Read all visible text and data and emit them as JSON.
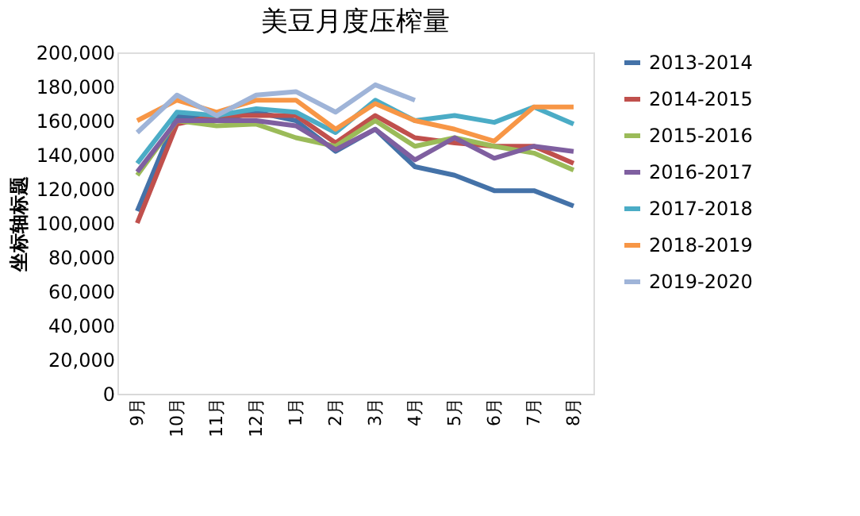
{
  "chart_data": {
    "type": "line",
    "title": "美豆月度压榨量",
    "ylabel": "坐标轴标题",
    "categories": [
      "9月",
      "10月",
      "11月",
      "12月",
      "1月",
      "2月",
      "3月",
      "4月",
      "5月",
      "6月",
      "7月",
      "8月"
    ],
    "series": [
      {
        "name": "2013-2014",
        "color": "#4472a8",
        "values": [
          107000,
          163000,
          160000,
          165000,
          160000,
          142000,
          155000,
          133000,
          128000,
          119000,
          119000,
          110000
        ]
      },
      {
        "name": "2014-2015",
        "color": "#c0504d",
        "values": [
          100000,
          158000,
          163000,
          163000,
          163000,
          147000,
          163000,
          150000,
          147000,
          145000,
          145000,
          135000
        ]
      },
      {
        "name": "2015-2016",
        "color": "#9bbb59",
        "values": [
          128000,
          160000,
          157000,
          158000,
          150000,
          145000,
          160000,
          145000,
          150000,
          145000,
          141000,
          131000
        ]
      },
      {
        "name": "2016-2017",
        "color": "#7f5fa0",
        "values": [
          130000,
          160000,
          160000,
          160000,
          157000,
          143000,
          155000,
          137000,
          150000,
          138000,
          145000,
          142000
        ]
      },
      {
        "name": "2017-2018",
        "color": "#4bacc6",
        "values": [
          135000,
          165000,
          163000,
          167000,
          165000,
          153000,
          172000,
          160000,
          163000,
          159000,
          168000,
          158000
        ]
      },
      {
        "name": "2018-2019",
        "color": "#f79646",
        "values": [
          160000,
          172000,
          165000,
          172000,
          172000,
          155000,
          170000,
          160000,
          155000,
          148000,
          168000,
          168000
        ]
      },
      {
        "name": "2019-2020",
        "color": "#9fb4d8",
        "values": [
          153000,
          175000,
          163000,
          175000,
          177000,
          165000,
          181000,
          172000,
          null,
          null,
          null,
          null
        ]
      }
    ],
    "ylim": [
      0,
      200000
    ],
    "yticks": [
      0,
      {
        "value": 20000,
        "label": "20,000"
      },
      {
        "value": 40000,
        "label": "40,000"
      },
      {
        "value": 60000,
        "label": "60,000"
      },
      {
        "value": 80000,
        "label": "80,000"
      },
      {
        "value": 100000,
        "label": "100,000"
      },
      {
        "value": 120000,
        "label": "120,000"
      },
      {
        "value": 140000,
        "label": "140,000"
      },
      {
        "value": 160000,
        "label": "160,000"
      },
      {
        "value": 180000,
        "label": "180,000"
      },
      {
        "value": 200000,
        "label": "200,000"
      }
    ],
    "grid": false,
    "legend": "right",
    "marker": "none",
    "line_style": "solid"
  }
}
